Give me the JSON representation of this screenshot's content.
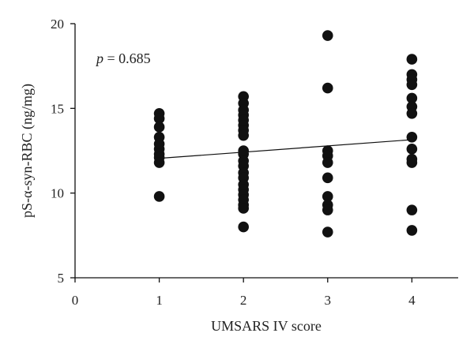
{
  "chart_data": {
    "type": "scatter",
    "title": "",
    "xlabel": "UMSARS IV score",
    "ylabel": "pS-α-syn-RBC (ng/mg)",
    "xlim": [
      0,
      4.55
    ],
    "ylim": [
      5,
      20
    ],
    "xticks": [
      0,
      1,
      2,
      3,
      4
    ],
    "yticks": [
      5,
      10,
      15,
      20
    ],
    "grid": false,
    "annotation": {
      "p_symbol": "p",
      "p_text": " = 0.685"
    },
    "trendline": {
      "x": [
        1,
        4
      ],
      "y": [
        12.05,
        13.15
      ]
    },
    "series": [
      {
        "points": [
          [
            1,
            14.7
          ],
          [
            1,
            14.4
          ],
          [
            1,
            13.9
          ],
          [
            1,
            13.3
          ],
          [
            1,
            12.9
          ],
          [
            1,
            12.6
          ],
          [
            1,
            12.3
          ],
          [
            1,
            12.1
          ],
          [
            1,
            11.8
          ],
          [
            1,
            9.8
          ],
          [
            2,
            15.7
          ],
          [
            2,
            15.3
          ],
          [
            2,
            14.9
          ],
          [
            2,
            14.6
          ],
          [
            2,
            14.3
          ],
          [
            2,
            14.0
          ],
          [
            2,
            13.7
          ],
          [
            2,
            13.4
          ],
          [
            2,
            12.5
          ],
          [
            2,
            12.3
          ],
          [
            2,
            11.9
          ],
          [
            2,
            11.6
          ],
          [
            2,
            11.2
          ],
          [
            2,
            10.9
          ],
          [
            2,
            10.5
          ],
          [
            2,
            10.2
          ],
          [
            2,
            9.9
          ],
          [
            2,
            9.6
          ],
          [
            2,
            9.3
          ],
          [
            2,
            9.1
          ],
          [
            2,
            8.0
          ],
          [
            3,
            19.3
          ],
          [
            3,
            16.2
          ],
          [
            3,
            12.5
          ],
          [
            3,
            12.2
          ],
          [
            3,
            11.8
          ],
          [
            3,
            10.9
          ],
          [
            3,
            9.8
          ],
          [
            3,
            9.3
          ],
          [
            3,
            9.0
          ],
          [
            3,
            7.7
          ],
          [
            4,
            17.9
          ],
          [
            4,
            17.0
          ],
          [
            4,
            16.7
          ],
          [
            4,
            16.4
          ],
          [
            4,
            15.6
          ],
          [
            4,
            15.1
          ],
          [
            4,
            14.7
          ],
          [
            4,
            13.3
          ],
          [
            4,
            12.6
          ],
          [
            4,
            12.0
          ],
          [
            4,
            11.8
          ],
          [
            4,
            9.0
          ],
          [
            4,
            7.8
          ]
        ]
      }
    ]
  }
}
